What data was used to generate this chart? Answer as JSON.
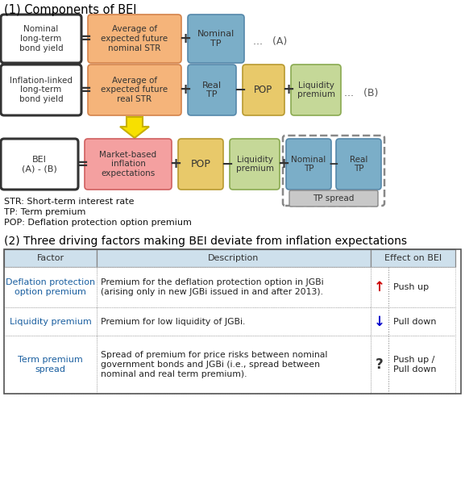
{
  "title1": "(1) Components of BEI",
  "title2": "(2) Three driving factors making BEI deviate from inflation expectations",
  "footnotes": [
    "STR: Short-term interest rate",
    "TP: Term premium",
    "POP: Deflation protection option premium"
  ],
  "row1": {
    "box1": {
      "text": "Nominal\nlong-term\nbond yield",
      "facecolor": "#ffffff",
      "edgecolor": "#333333",
      "lw": 2.2
    },
    "box2": {
      "text": "Average of\nexpected future\nnominal STR",
      "facecolor": "#f5b47a",
      "edgecolor": "#d4834a",
      "lw": 1.2
    },
    "box3": {
      "text": "Nominal\nTP",
      "facecolor": "#7baec8",
      "edgecolor": "#5588aa",
      "lw": 1.2
    },
    "label": "...   (A)"
  },
  "row2": {
    "box1": {
      "text": "Inflation-linked\nlong-term\nbond yield",
      "facecolor": "#ffffff",
      "edgecolor": "#333333",
      "lw": 2.2
    },
    "box2": {
      "text": "Average of\nexpected future\nreal STR",
      "facecolor": "#f5b47a",
      "edgecolor": "#d4834a",
      "lw": 1.2
    },
    "box3": {
      "text": "Real\nTP",
      "facecolor": "#7baec8",
      "edgecolor": "#5588aa",
      "lw": 1.2
    },
    "box4": {
      "text": "POP",
      "facecolor": "#e8c96a",
      "edgecolor": "#b89a30",
      "lw": 1.2
    },
    "box5": {
      "text": "Liquidity\npremium",
      "facecolor": "#c5d898",
      "edgecolor": "#8aaa50",
      "lw": 1.2
    },
    "label": "...   (B)"
  },
  "row3": {
    "box1": {
      "text": "BEI\n(A) - (B)",
      "facecolor": "#ffffff",
      "edgecolor": "#333333",
      "lw": 2.2
    },
    "box2": {
      "text": "Market-based\ninflation\nexpectations",
      "facecolor": "#f4a0a0",
      "edgecolor": "#d06060",
      "lw": 1.2
    },
    "box3": {
      "text": "POP",
      "facecolor": "#e8c96a",
      "edgecolor": "#b89a30",
      "lw": 1.2
    },
    "box4": {
      "text": "Liquidity\npremium",
      "facecolor": "#c5d898",
      "edgecolor": "#8aaa50",
      "lw": 1.2
    },
    "box5": {
      "text": "Nominal\nTP",
      "facecolor": "#7baec8",
      "edgecolor": "#5588aa",
      "lw": 1.2
    },
    "box6": {
      "text": "Real\nTP",
      "facecolor": "#7baec8",
      "edgecolor": "#5588aa",
      "lw": 1.2
    },
    "tp_spread_label": "TP spread"
  },
  "arrow_yellow_face": "#f7e000",
  "arrow_yellow_edge": "#c8b000",
  "table_header": [
    "Factor",
    "Description",
    "Effect on BEI"
  ],
  "table_rows": [
    {
      "factor": "Deflation protection\noption premium",
      "description": "Premium for the deflation protection option in JGBi\n(arising only in new JGBi issued in and after 2013).",
      "arrow": "↑",
      "arrow_color": "#cc0000",
      "effect": "Push up"
    },
    {
      "factor": "Liquidity premium",
      "description": "Premium for low liquidity of JGBi.",
      "arrow": "↓",
      "arrow_color": "#0000cc",
      "effect": "Pull down"
    },
    {
      "factor": "Term premium\nspread",
      "description": "Spread of premium for price risks between nominal\ngovernment bonds and JGBi (i.e., spread between\nnominal and real term premium).",
      "arrow": "?",
      "arrow_color": "#333333",
      "effect": "Push up /\nPull down"
    }
  ],
  "header_bg": "#cee0ec",
  "bg_color": "#ffffff"
}
